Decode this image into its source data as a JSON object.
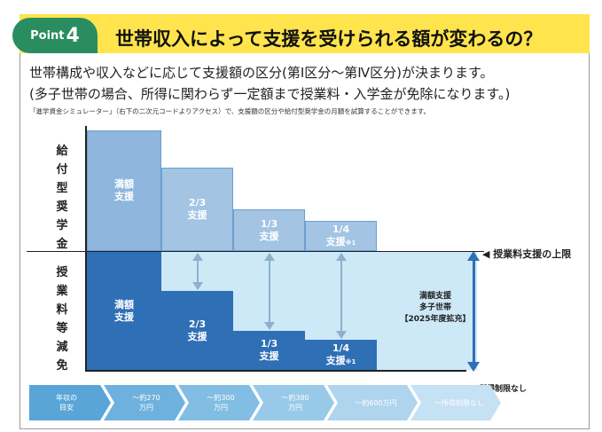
{
  "header": {
    "point_word": "Point",
    "point_num": "4",
    "title": "世帯収入によって支援を受けられる額が変わるの？"
  },
  "body": {
    "desc1": "世帯構成や収入などに応じて支援額の区分(第Ⅰ区分〜第Ⅳ区分)が決まります。",
    "desc2": "(多子世帯の場合、所得に関わらず一定額まで授業料・入学金が免除になります。)",
    "note": "「進学資金シミュレーター」（右下の二次元コードよりアクセス）で、支援額の区分や給付型奨学金の月額を試算することができます。"
  },
  "chart": {
    "ylabel_top": [
      "給",
      "付",
      "型",
      "奨",
      "学",
      "金"
    ],
    "ylabel_bottom": [
      "授",
      "業",
      "料",
      "等",
      "減",
      "免"
    ],
    "scholarship": [
      {
        "l1": "満額",
        "l2": "支援",
        "sup": ""
      },
      {
        "l1": "2/3",
        "l2": "支援",
        "sup": ""
      },
      {
        "l1": "1/3",
        "l2": "支援",
        "sup": ""
      },
      {
        "l1": "1/4",
        "l2": "支援",
        "sup": "※1"
      }
    ],
    "tuition": [
      {
        "l1": "満額",
        "l2": "支援",
        "sup": ""
      },
      {
        "l1": "2/3",
        "l2": "支援",
        "sup": ""
      },
      {
        "l1": "1/3",
        "l2": "支援",
        "sup": ""
      },
      {
        "l1": "1/4",
        "l2": "支援",
        "sup": "※1"
      }
    ],
    "limit_label": "◀ 授業料支援の上限",
    "multi_child": {
      "l1": "満額支援",
      "l2": "多子世帯",
      "l3": "【2025年度拡充】"
    },
    "no_limit": "所得制限なし"
  },
  "income_steps": [
    {
      "l1": "年収の",
      "l2": "目安",
      "color": "#5aa5d8"
    },
    {
      "l1": "〜約270",
      "l2": "万円",
      "color": "#6fb1de"
    },
    {
      "l1": "〜約300",
      "l2": "万円",
      "color": "#82bde3"
    },
    {
      "l1": "〜約380",
      "l2": "万円",
      "color": "#98c9e9"
    },
    {
      "l1": "〜約600万円",
      "l2": "",
      "color": "#aed4ee"
    },
    {
      "l1": "〜所得制限なし",
      "l2": "",
      "color": "#c5e1f4"
    }
  ]
}
